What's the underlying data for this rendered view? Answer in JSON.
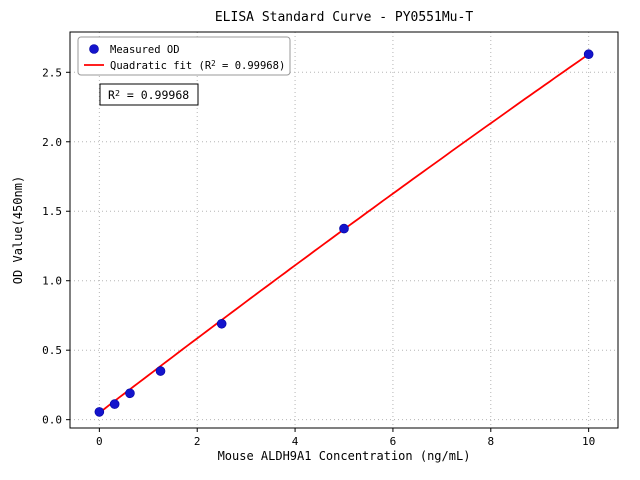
{
  "chart_data": {
    "type": "scatter",
    "title": "ELISA Standard Curve - PY0551Mu-T",
    "xlabel": "Mouse ALDH9A1 Concentration (ng/mL)",
    "ylabel": "OD Value(450nm)",
    "points": {
      "x": [
        0,
        0.3125,
        0.625,
        1.25,
        2.5,
        5,
        10
      ],
      "y": [
        0.056,
        0.112,
        0.19,
        0.35,
        0.69,
        1.375,
        2.63
      ]
    },
    "fit": {
      "type": "quadratic",
      "coefficients": {
        "a": 0.05,
        "b": 0.27,
        "c": -0.0012
      },
      "x_range": [
        0,
        10
      ],
      "r_squared": "0.99968"
    },
    "legend": [
      {
        "label": "Measured OD",
        "marker": "dot",
        "color": "#1414cc"
      },
      {
        "label": "Quadratic fit (R² = 0.99968)",
        "marker": "line",
        "color": "#ff0000"
      }
    ],
    "annotation": "R² = 0.99968",
    "xticks": [
      0,
      2,
      4,
      6,
      8,
      10
    ],
    "yticks": [
      0.0,
      0.5,
      1.0,
      1.5,
      2.0,
      2.5
    ],
    "xlim": [
      -0.6,
      10.6
    ],
    "ylim": [
      -0.06,
      2.79
    ],
    "grid": true,
    "colors": {
      "point": "#1414cc",
      "point_edge": "#0000a0",
      "fit_line": "#ff0000",
      "grid_line": "#b5b5b5",
      "axis": "#000000",
      "legend_border": "#999999",
      "annotation_border": "#000000"
    }
  }
}
